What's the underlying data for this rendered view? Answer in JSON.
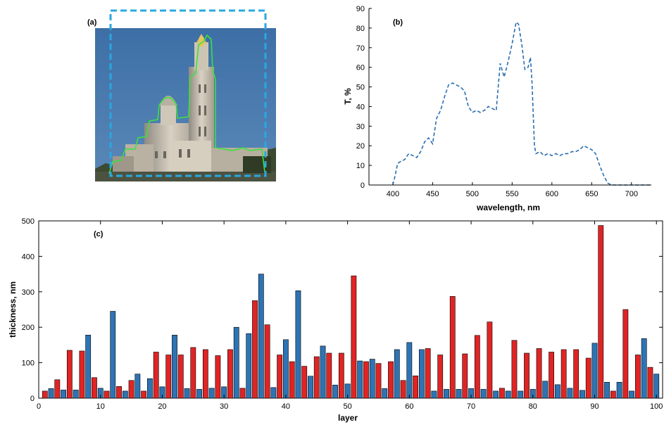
{
  "figure": {
    "panel_a": {
      "label": "(a)"
    },
    "panel_b": {
      "label": "(b)"
    },
    "panel_c": {
      "label": "(c)"
    }
  },
  "chart_data": [
    {
      "type": "line",
      "panel": "(b)",
      "xlabel": "wavelength, nm",
      "ylabel": "T, %",
      "xlim": [
        370,
        725
      ],
      "ylim": [
        0,
        90
      ],
      "x_ticks": [
        400,
        450,
        500,
        550,
        600,
        650,
        700
      ],
      "y_ticks": [
        0,
        10,
        20,
        30,
        40,
        50,
        60,
        70,
        80,
        90
      ],
      "line_style": "dashed",
      "color": "#2a6fb0",
      "series": [
        {
          "x": [
            400,
            403,
            406,
            410,
            415,
            420,
            425,
            430,
            435,
            440,
            445,
            450,
            455,
            460,
            465,
            470,
            475,
            480,
            485,
            490,
            495,
            500,
            505,
            510,
            515,
            520,
            525,
            530,
            535,
            540,
            545,
            550,
            555,
            558,
            562,
            566,
            570,
            573,
            575,
            578,
            580,
            585,
            590,
            595,
            600,
            605,
            610,
            615,
            620,
            625,
            630,
            635,
            640,
            645,
            650,
            655,
            660,
            665,
            670,
            675,
            680,
            700,
            725
          ],
          "y": [
            0,
            5,
            11,
            12,
            13,
            16,
            15,
            14,
            17,
            22,
            24,
            21,
            34,
            38,
            45,
            51,
            52,
            51,
            50,
            48,
            40,
            37,
            38,
            37,
            38,
            40,
            39,
            38,
            62,
            55,
            63,
            72,
            83,
            82,
            72,
            59,
            60,
            65,
            52,
            20,
            16,
            17,
            15,
            16,
            15,
            16,
            15,
            16,
            16,
            17,
            17,
            18,
            20,
            19,
            18,
            16,
            10,
            5,
            1,
            0,
            0,
            0,
            0
          ]
        }
      ]
    },
    {
      "type": "bar",
      "panel": "(c)",
      "xlabel": "layer",
      "ylabel": "thickness, nm",
      "xlim": [
        0,
        101
      ],
      "ylim": [
        0,
        500
      ],
      "x_ticks": [
        0,
        10,
        20,
        30,
        40,
        50,
        60,
        70,
        80,
        90,
        100
      ],
      "y_ticks": [
        0,
        100,
        200,
        300,
        400,
        500
      ],
      "colors": {
        "odd": "#e02424",
        "even": "#2e74b5"
      },
      "values": [
        20,
        27,
        52,
        23,
        135,
        23,
        133,
        178,
        58,
        28,
        20,
        245,
        33,
        20,
        50,
        68,
        20,
        55,
        130,
        32,
        122,
        178,
        122,
        27,
        143,
        25,
        137,
        28,
        120,
        32,
        137,
        200,
        28,
        182,
        275,
        350,
        207,
        30,
        122,
        165,
        103,
        303,
        90,
        62,
        117,
        147,
        127,
        37,
        127,
        40,
        345,
        105,
        103,
        110,
        98,
        27,
        103,
        137,
        50,
        157,
        63,
        137,
        140,
        20,
        122,
        25,
        287,
        25,
        125,
        27,
        177,
        25,
        215,
        20,
        28,
        20,
        163,
        20,
        127,
        25,
        140,
        48,
        130,
        38,
        137,
        28,
        137,
        22,
        113,
        155,
        487,
        45,
        20,
        45,
        250,
        20,
        122,
        168,
        87,
        68
      ]
    }
  ]
}
